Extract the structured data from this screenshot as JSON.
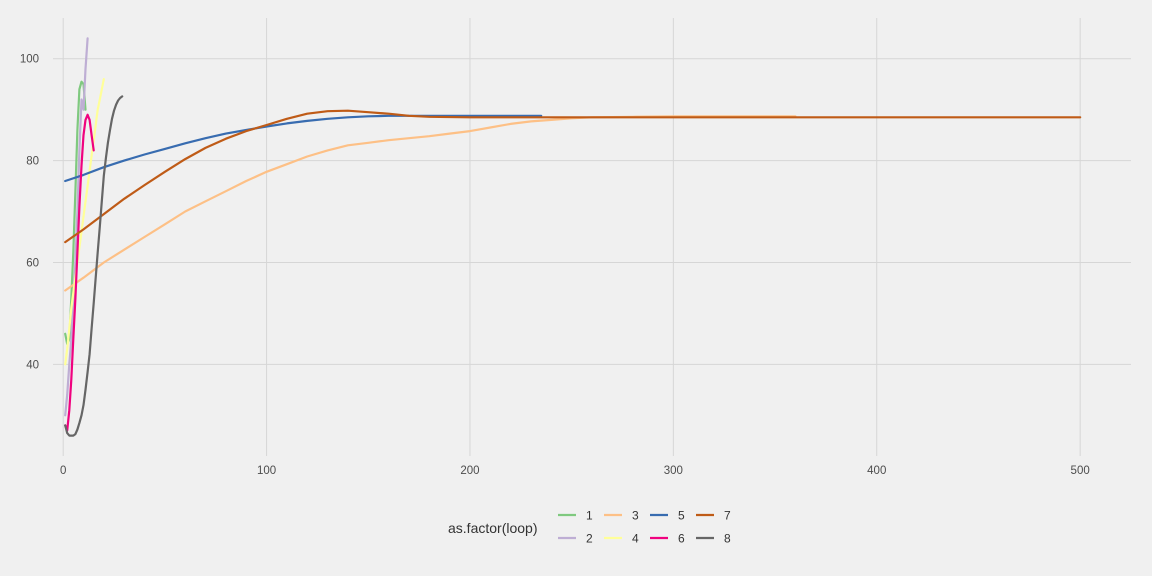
{
  "chart_data": {
    "type": "line",
    "title": "",
    "xlabel": "",
    "ylabel": "",
    "xlim": [
      -5,
      525
    ],
    "ylim": [
      22,
      108
    ],
    "x_ticks": [
      0,
      100,
      200,
      300,
      400,
      500
    ],
    "y_ticks": [
      40,
      60,
      80,
      100
    ],
    "x_tick_labels": [
      "0",
      "100",
      "200",
      "300",
      "400",
      "500"
    ],
    "y_tick_labels": [
      "40",
      "60",
      "80",
      "100"
    ],
    "grid": true,
    "legend_position": "bottom",
    "legend": {
      "title": "as.factor(loop)",
      "entries": [
        "1",
        "2",
        "3",
        "4",
        "5",
        "6",
        "7",
        "8"
      ]
    },
    "series": [
      {
        "name": "1",
        "color": "#7fc97f",
        "x": [
          1,
          2,
          3,
          4,
          5,
          6,
          7,
          8,
          9,
          10,
          11
        ],
        "y": [
          46,
          44,
          45,
          53,
          62,
          74,
          86,
          94,
          95.5,
          95,
          90
        ]
      },
      {
        "name": "2",
        "color": "#beaed4",
        "x": [
          1,
          2,
          3,
          4,
          5,
          6,
          7,
          8,
          9,
          10,
          11,
          12
        ],
        "y": [
          30,
          34,
          40,
          45,
          52,
          60,
          70,
          82,
          92,
          90,
          98,
          104
        ]
      },
      {
        "name": "3",
        "color": "#fdc086",
        "x": [
          1,
          10,
          20,
          30,
          40,
          50,
          60,
          70,
          80,
          90,
          100,
          110,
          120,
          130,
          140,
          150,
          160,
          170,
          180,
          190,
          200,
          210,
          220,
          230,
          240,
          250,
          260,
          280,
          300,
          320,
          340,
          360
        ],
        "y": [
          54.5,
          57,
          60,
          62.5,
          65,
          67.5,
          70,
          72,
          74,
          76,
          77.8,
          79.3,
          80.8,
          82,
          83,
          83.5,
          84,
          84.4,
          84.8,
          85.3,
          85.8,
          86.5,
          87.2,
          87.7,
          88,
          88.3,
          88.5,
          88.6,
          88.7,
          88.7,
          88.7,
          88.7
        ]
      },
      {
        "name": "4",
        "color": "#ffff99",
        "x": [
          1,
          2,
          3,
          4,
          5,
          6,
          7,
          8,
          9,
          10,
          11,
          12,
          13,
          14,
          15,
          16,
          17,
          18,
          19,
          20
        ],
        "y": [
          40,
          43,
          47,
          51,
          54,
          57,
          60,
          63,
          66,
          69,
          72,
          75,
          78,
          81,
          84,
          87,
          90,
          92,
          94,
          96
        ]
      },
      {
        "name": "5",
        "color": "#386cb0",
        "x": [
          1,
          10,
          20,
          30,
          40,
          50,
          60,
          70,
          80,
          90,
          100,
          110,
          120,
          130,
          140,
          150,
          160,
          170,
          180,
          190,
          200,
          210,
          220,
          230,
          235
        ],
        "y": [
          76,
          77.2,
          78.7,
          80,
          81.2,
          82.3,
          83.4,
          84.4,
          85.3,
          86,
          86.7,
          87.3,
          87.8,
          88.2,
          88.5,
          88.7,
          88.8,
          88.8,
          88.8,
          88.8,
          88.8,
          88.8,
          88.8,
          88.8,
          88.8
        ]
      },
      {
        "name": "6",
        "color": "#f0027f",
        "x": [
          1,
          2,
          3,
          4,
          5,
          6,
          7,
          8,
          9,
          10,
          11,
          12,
          13,
          14,
          15
        ],
        "y": [
          28,
          27,
          31,
          37,
          45,
          53,
          62,
          71,
          79,
          85,
          88,
          89,
          88,
          85,
          82
        ]
      },
      {
        "name": "7",
        "color": "#bf5b17",
        "x": [
          1,
          10,
          20,
          30,
          40,
          50,
          60,
          70,
          80,
          90,
          100,
          110,
          120,
          130,
          140,
          150,
          160,
          170,
          180,
          200,
          250,
          300,
          350,
          400,
          450,
          500
        ],
        "y": [
          64,
          66.5,
          69.5,
          72.5,
          75.2,
          77.8,
          80.3,
          82.5,
          84.3,
          85.8,
          87,
          88.2,
          89.2,
          89.7,
          89.8,
          89.5,
          89.2,
          88.8,
          88.6,
          88.5,
          88.5,
          88.5,
          88.5,
          88.5,
          88.5,
          88.5
        ]
      },
      {
        "name": "8",
        "color": "#666666",
        "x": [
          1,
          2,
          3,
          4,
          5,
          6,
          7,
          8,
          9,
          10,
          11,
          12,
          13,
          14,
          15,
          16,
          17,
          18,
          19,
          20,
          21,
          22,
          23,
          24,
          25,
          26,
          27,
          28,
          29
        ],
        "y": [
          28,
          26.5,
          26,
          26,
          26,
          26.3,
          27.2,
          28.5,
          30,
          32,
          35,
          38.5,
          42,
          47,
          52,
          57,
          62,
          67,
          72,
          77,
          80.5,
          83.5,
          86,
          88.2,
          89.8,
          91,
          91.8,
          92.3,
          92.6
        ]
      }
    ]
  }
}
